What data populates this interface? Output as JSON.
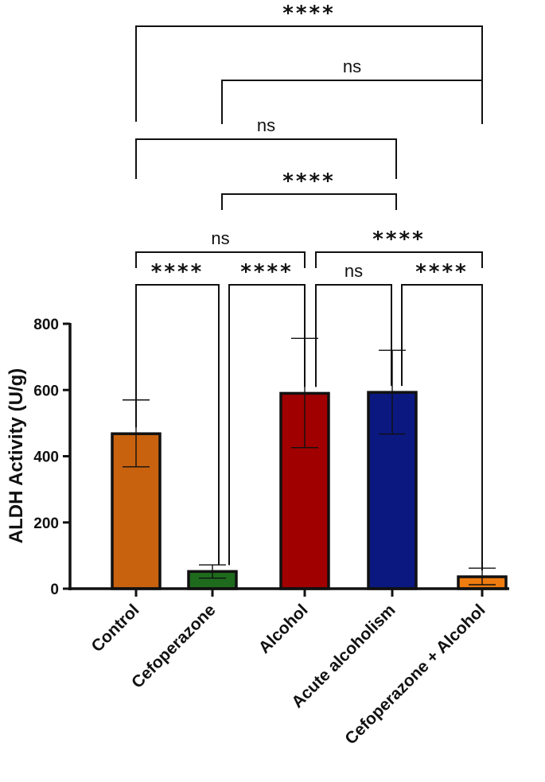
{
  "chart_data": {
    "type": "bar",
    "ylabel": "ALDH Activity (U/g)",
    "ylim": [
      0,
      800
    ],
    "yticks": [
      0,
      200,
      400,
      600,
      800
    ],
    "categories": [
      "Control",
      "Cefoperazone",
      "Alcohol",
      "Acute alcoholism",
      "Cefoperazone + Alcohol"
    ],
    "values": [
      468,
      52,
      590,
      593,
      36
    ],
    "error_low": [
      368,
      32,
      426,
      467,
      12
    ],
    "error_high": [
      570,
      72,
      756,
      720,
      62
    ],
    "bar_colors": [
      "#c8620f",
      "#1e6b1e",
      "#a00000",
      "#0a1880",
      "#f07c10"
    ],
    "comparisons": [
      {
        "from": 0,
        "to": 1,
        "label": "****"
      },
      {
        "from": 1,
        "to": 2,
        "label": "****"
      },
      {
        "from": 2,
        "to": 3,
        "label": "ns"
      },
      {
        "from": 3,
        "to": 4,
        "label": "****"
      },
      {
        "from": 0,
        "to": 2,
        "label": "ns"
      },
      {
        "from": 2,
        "to": 4,
        "label": "****"
      },
      {
        "from": 1,
        "to": 3,
        "label": "****"
      },
      {
        "from": 0,
        "to": 3,
        "label": "ns"
      },
      {
        "from": 1,
        "to": 4,
        "label": "ns"
      },
      {
        "from": 0,
        "to": 4,
        "label": "****"
      }
    ]
  }
}
